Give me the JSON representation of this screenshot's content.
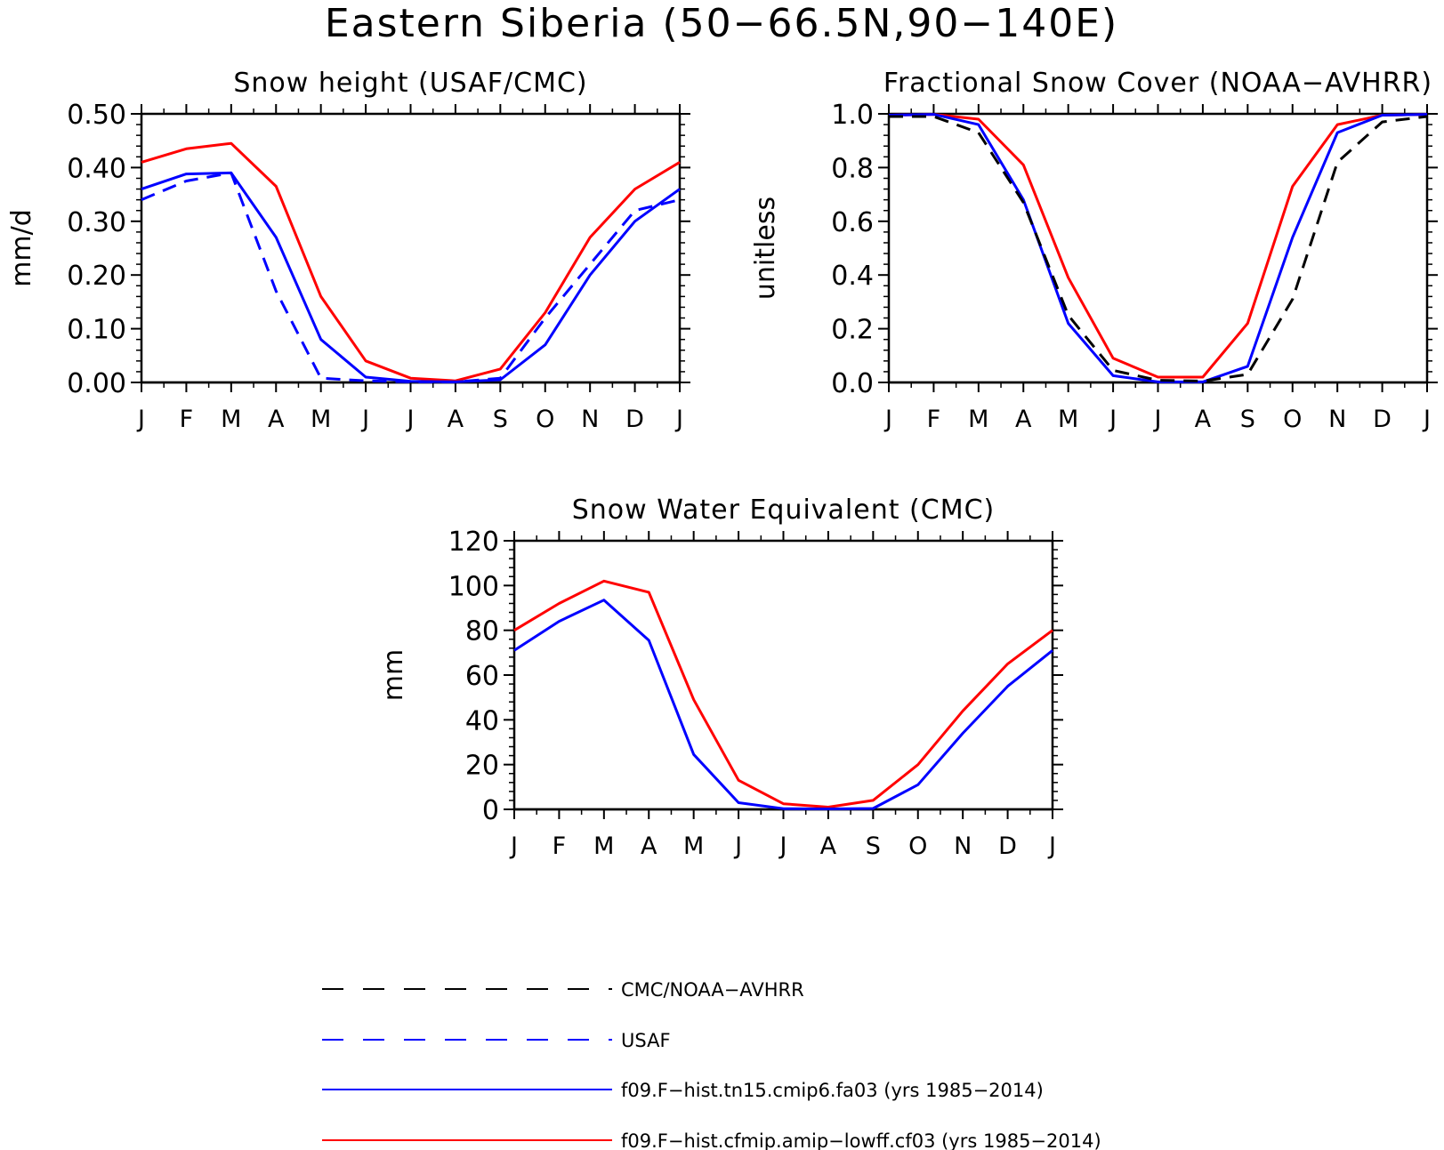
{
  "figure_title": "Eastern Siberia (50−66.5N,90−140E)",
  "colors": {
    "model_a": "#0000ff",
    "model_b": "#ff0000",
    "obs": "#000000",
    "usaf": "#0000ff"
  },
  "legend": [
    {
      "key": "obs",
      "label": "CMC/NOAA−AVHRR",
      "color": "#000000",
      "dashed": true
    },
    {
      "key": "usaf",
      "label": "USAF",
      "color": "#0000ff",
      "dashed": true
    },
    {
      "key": "model_a",
      "label": "f09.F−hist.tn15.cmip6.fa03 (yrs 1985−2014)",
      "color": "#0000ff",
      "dashed": false
    },
    {
      "key": "model_b",
      "label": "f09.F−hist.cfmip.amip−lowff.cf03 (yrs 1985−2014)",
      "color": "#ff0000",
      "dashed": false
    }
  ],
  "chart_data": [
    {
      "type": "line",
      "title": "Snow height (USAF/CMC)",
      "ylabel": "mm/d",
      "xlabel": "",
      "categories": [
        "J",
        "F",
        "M",
        "A",
        "M",
        "J",
        "J",
        "A",
        "S",
        "O",
        "N",
        "D",
        "J"
      ],
      "ylim": [
        0,
        0.5
      ],
      "yticks": [
        "0.00",
        "0.10",
        "0.20",
        "0.30",
        "0.40",
        "0.50"
      ],
      "series": [
        {
          "key": "model_b",
          "name": "f09.F−hist.cfmip.amip−lowff.cf03 (yrs 1985−2014)",
          "dashed": false,
          "values": [
            0.41,
            0.435,
            0.445,
            0.365,
            0.16,
            0.04,
            0.008,
            0.003,
            0.025,
            0.13,
            0.27,
            0.36,
            0.41
          ]
        },
        {
          "key": "model_a",
          "name": "f09.F−hist.tn15.cmip6.fa03 (yrs 1985−2014)",
          "dashed": false,
          "values": [
            0.36,
            0.388,
            0.39,
            0.27,
            0.08,
            0.01,
            0.002,
            0.001,
            0.005,
            0.07,
            0.2,
            0.3,
            0.36
          ]
        },
        {
          "key": "usaf",
          "name": "USAF",
          "dashed": true,
          "values": [
            0.34,
            0.375,
            0.39,
            0.17,
            0.008,
            0.003,
            0.001,
            0.001,
            0.008,
            0.12,
            0.22,
            0.32,
            0.34
          ]
        }
      ]
    },
    {
      "type": "line",
      "title": "Fractional Snow Cover (NOAA−AVHRR)",
      "ylabel": "unitless",
      "xlabel": "",
      "categories": [
        "J",
        "F",
        "M",
        "A",
        "M",
        "J",
        "J",
        "A",
        "S",
        "O",
        "N",
        "D",
        "J"
      ],
      "ylim": [
        0,
        1.0
      ],
      "yticks": [
        "0.0",
        "0.2",
        "0.4",
        "0.6",
        "0.8",
        "1.0"
      ],
      "series": [
        {
          "key": "model_b",
          "name": "f09.F−hist.cfmip.amip−lowff.cf03 (yrs 1985−2014)",
          "dashed": false,
          "values": [
            0.995,
            0.998,
            0.98,
            0.81,
            0.39,
            0.09,
            0.02,
            0.02,
            0.22,
            0.73,
            0.96,
            0.995,
            0.998
          ]
        },
        {
          "key": "model_a",
          "name": "f09.F−hist.tn15.cmip6.fa03 (yrs 1985−2014)",
          "dashed": false,
          "values": [
            0.995,
            0.998,
            0.96,
            0.68,
            0.22,
            0.025,
            0.002,
            0.002,
            0.06,
            0.54,
            0.93,
            0.995,
            0.998
          ]
        },
        {
          "key": "obs",
          "name": "CMC/NOAA−AVHRR",
          "dashed": true,
          "values": [
            0.99,
            0.99,
            0.93,
            0.67,
            0.25,
            0.045,
            0.008,
            0.005,
            0.03,
            0.31,
            0.82,
            0.97,
            0.99
          ]
        }
      ]
    },
    {
      "type": "line",
      "title": "Snow Water Equivalent (CMC)",
      "ylabel": "mm",
      "xlabel": "",
      "categories": [
        "J",
        "F",
        "M",
        "A",
        "M",
        "J",
        "J",
        "A",
        "S",
        "O",
        "N",
        "D",
        "J"
      ],
      "ylim": [
        0,
        120
      ],
      "yticks": [
        "0",
        "20",
        "40",
        "60",
        "80",
        "100",
        "120"
      ],
      "series": [
        {
          "key": "model_b",
          "name": "f09.F−hist.cfmip.amip−lowff.cf03 (yrs 1985−2014)",
          "dashed": false,
          "values": [
            80,
            92,
            102,
            97,
            49,
            13,
            2.5,
            1,
            4,
            20,
            44,
            65,
            80
          ]
        },
        {
          "key": "model_a",
          "name": "f09.F−hist.tn15.cmip6.fa03 (yrs 1985−2014)",
          "dashed": false,
          "values": [
            71,
            84,
            93.5,
            75.5,
            24.5,
            3,
            0.3,
            0.2,
            0.4,
            11,
            34,
            55,
            71
          ]
        }
      ]
    }
  ]
}
